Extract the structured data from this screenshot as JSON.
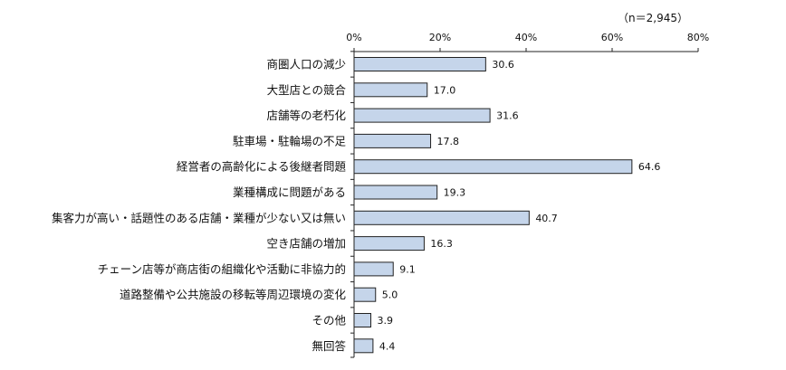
{
  "chart_data": {
    "type": "bar",
    "orientation": "horizontal",
    "sample_note": "（n＝2,945）",
    "categories": [
      "商圏人口の減少",
      "大型店との競合",
      "店舗等の老朽化",
      "駐車場・駐輪場の不足",
      "経営者の高齢化による後継者問題",
      "業種構成に問題がある",
      "集客力が高い・話題性のある店舗・業種が少ない又は無い",
      "空き店舗の増加",
      "チェーン店等が商店街の組織化や活動に非協力的",
      "道路整備や公共施設の移転等周辺環境の変化",
      "その他",
      "無回答"
    ],
    "values": [
      30.6,
      17.0,
      31.6,
      17.8,
      64.6,
      19.3,
      40.7,
      16.3,
      9.1,
      5.0,
      3.9,
      4.4
    ],
    "value_labels": [
      "30.6",
      "17.0",
      "31.6",
      "17.8",
      "64.6",
      "19.3",
      "40.7",
      "16.3",
      "9.1",
      "5.0",
      "3.9",
      "4.4"
    ],
    "xlim": [
      0,
      80
    ],
    "xticks": [
      0,
      20,
      40,
      60,
      80
    ],
    "xtick_labels": [
      "0%",
      "20%",
      "40%",
      "60%",
      "80%"
    ],
    "tick_position": "top",
    "grid": false,
    "colors": {
      "bar_fill": "#c5d5ea",
      "bar_stroke": "#222222",
      "axis": "#222222"
    }
  }
}
